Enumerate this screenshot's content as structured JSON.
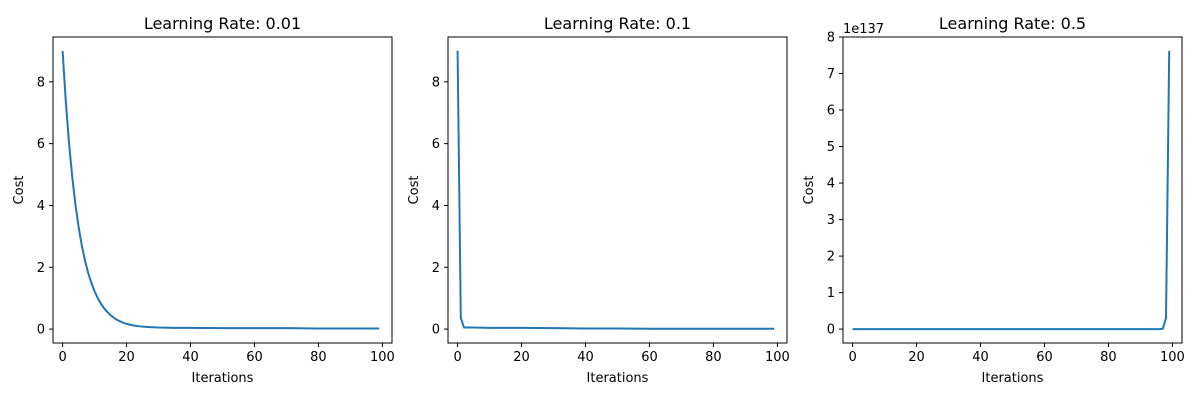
{
  "chart_data": [
    {
      "type": "line",
      "title": "Learning Rate: 0.01",
      "xlabel": "Iterations",
      "ylabel": "Cost",
      "xlim": [
        -3,
        103
      ],
      "ylim": [
        -0.45,
        9.45
      ],
      "xticks": [
        0,
        20,
        40,
        60,
        80,
        100
      ],
      "yticks": [
        0,
        2,
        4,
        6,
        8
      ],
      "offset_text": "",
      "grid": false,
      "series": [
        {
          "color": "#1f77b4",
          "x": [
            0,
            1,
            2,
            3,
            4,
            5,
            6,
            7,
            8,
            9,
            10,
            11,
            12,
            13,
            14,
            15,
            16,
            17,
            18,
            19,
            20,
            22,
            24,
            26,
            28,
            30,
            35,
            40,
            50,
            60,
            70,
            80,
            90,
            99
          ],
          "y": [
            9.0,
            7.37,
            6.03,
            4.94,
            4.04,
            3.31,
            2.71,
            2.22,
            1.82,
            1.49,
            1.22,
            1.0,
            0.82,
            0.67,
            0.55,
            0.45,
            0.37,
            0.3,
            0.25,
            0.2,
            0.17,
            0.12,
            0.09,
            0.07,
            0.06,
            0.05,
            0.04,
            0.04,
            0.03,
            0.03,
            0.03,
            0.02,
            0.02,
            0.02
          ]
        }
      ]
    },
    {
      "type": "line",
      "title": "Learning Rate: 0.1",
      "xlabel": "Iterations",
      "ylabel": "Cost",
      "xlim": [
        -3,
        103
      ],
      "ylim": [
        -0.45,
        9.45
      ],
      "xticks": [
        0,
        20,
        40,
        60,
        80,
        100
      ],
      "yticks": [
        0,
        2,
        4,
        6,
        8
      ],
      "offset_text": "",
      "grid": false,
      "series": [
        {
          "color": "#1f77b4",
          "x": [
            0,
            1,
            2,
            5,
            10,
            20,
            30,
            40,
            50,
            60,
            70,
            80,
            90,
            99
          ],
          "y": [
            9.0,
            0.36,
            0.05,
            0.05,
            0.04,
            0.04,
            0.03,
            0.02,
            0.02,
            0.01,
            0.01,
            0.01,
            0.01,
            0.01
          ]
        }
      ]
    },
    {
      "type": "line",
      "title": "Learning Rate: 0.5",
      "xlabel": "Iterations",
      "ylabel": "Cost",
      "xlim": [
        -3,
        103
      ],
      "ylim": [
        -0.38,
        8.0
      ],
      "xticks": [
        0,
        20,
        40,
        60,
        80,
        100
      ],
      "yticks": [
        0,
        1,
        2,
        3,
        4,
        5,
        6,
        7,
        8
      ],
      "offset_text": "1e137",
      "grid": false,
      "series": [
        {
          "color": "#1f77b4",
          "x": [
            0,
            20,
            40,
            60,
            80,
            90,
            95,
            96,
            97,
            98,
            99
          ],
          "y": [
            0,
            0,
            0,
            0,
            0,
            0,
            0.0,
            0.001,
            0.012,
            0.3,
            7.62
          ]
        }
      ]
    }
  ]
}
